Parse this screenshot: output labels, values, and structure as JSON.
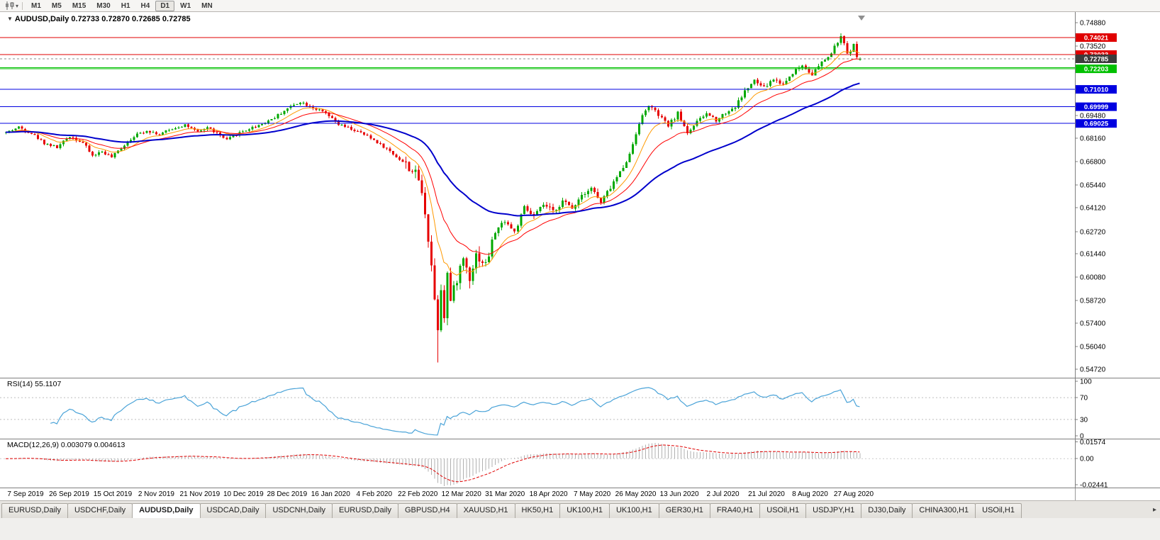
{
  "toolbar": {
    "timeframes": [
      "M1",
      "M5",
      "M15",
      "M30",
      "H1",
      "H4",
      "D1",
      "W1",
      "MN"
    ],
    "active_timeframe": "D1",
    "chart_type_icon": "candlestick-chart-icon"
  },
  "chart": {
    "title": "AUDUSD,Daily",
    "ohlc_text": "0.72733 0.72870 0.72685 0.72785"
  },
  "rsi": {
    "title": "RSI(14)",
    "value": "55.1107",
    "scale_labels": [
      "100",
      "70",
      "30",
      "0"
    ]
  },
  "macd": {
    "title": "MACD(12,26,9)",
    "value": "0.003079 0.004613",
    "scale_labels": [
      "0.01574",
      "0.00",
      "-0.02441"
    ]
  },
  "levels": [
    {
      "price": 0.74021,
      "color": "#e00000",
      "label": "0.74021"
    },
    {
      "price": 0.73033,
      "color": "#e00000",
      "label": "0.73033"
    },
    {
      "price": 0.7228,
      "color": "#00c000",
      "label": ""
    },
    {
      "price": 0.72203,
      "color": "#00c000",
      "label": "0.72203"
    },
    {
      "price": 0.7101,
      "color": "#0000e0",
      "label": "0.71010"
    },
    {
      "price": 0.69999,
      "color": "#0000e0",
      "label": "0.69999"
    },
    {
      "price": 0.69025,
      "color": "#0000e0",
      "label": "0.69025"
    }
  ],
  "current_price": {
    "price": 0.72785,
    "label": "0.72785",
    "box_color": "#3c3c3c"
  },
  "price_scale_labels": [
    "0.74880",
    "0.73520",
    "0.69480",
    "0.68160",
    "0.66800",
    "0.65440",
    "0.64120",
    "0.62720",
    "0.61440",
    "0.60080",
    "0.58720",
    "0.57400",
    "0.56040",
    "0.54720"
  ],
  "time_axis": {
    "labels": [
      "7 Sep 2019",
      "26 Sep 2019",
      "15 Oct 2019",
      "2 Nov 2019",
      "21 Nov 2019",
      "10 Dec 2019",
      "28 Dec 2019",
      "16 Jan 2020",
      "4 Feb 2020",
      "22 Feb 2020",
      "12 Mar 2020",
      "31 Mar 2020",
      "18 Apr 2020",
      "7 May 2020",
      "26 May 2020",
      "13 Jun 2020",
      "2 Jul 2020",
      "21 Jul 2020",
      "8 Aug 2020",
      "27 Aug 2020"
    ]
  },
  "tabs": {
    "items": [
      "EURUSD,Daily",
      "USDCHF,Daily",
      "AUDUSD,Daily",
      "USDCAD,Daily",
      "USDCNH,Daily",
      "EURUSD,Daily",
      "GBPUSD,H4",
      "XAUUSD,H1",
      "HK50,H1",
      "UK100,H1",
      "UK100,H1",
      "GER30,H1",
      "FRA40,H1",
      "USOil,H1",
      "USDJPY,H1",
      "DJ30,Daily",
      "CHINA300,H1",
      "USOil,H1"
    ],
    "active_index": 2,
    "scroll_right": "▸"
  },
  "chart_data": {
    "type": "candlestick",
    "symbol": "AUDUSD",
    "timeframe": "Daily",
    "count": 268,
    "seed": 42,
    "colors": {
      "up": "#00a800",
      "down": "#e60000"
    },
    "last_candle": {
      "open": 0.72733,
      "high": 0.7287,
      "low": 0.72685,
      "close": 0.72785
    },
    "waypoints": [
      [
        0,
        0.685
      ],
      [
        4,
        0.688
      ],
      [
        8,
        0.6845
      ],
      [
        12,
        0.679
      ],
      [
        16,
        0.6762
      ],
      [
        20,
        0.683
      ],
      [
        24,
        0.679
      ],
      [
        27,
        0.6715
      ],
      [
        30,
        0.674
      ],
      [
        33,
        0.6705
      ],
      [
        36,
        0.676
      ],
      [
        40,
        0.683
      ],
      [
        44,
        0.6862
      ],
      [
        48,
        0.6838
      ],
      [
        52,
        0.6872
      ],
      [
        56,
        0.6895
      ],
      [
        60,
        0.685
      ],
      [
        63,
        0.688
      ],
      [
        66,
        0.6845
      ],
      [
        69,
        0.6805
      ],
      [
        72,
        0.684
      ],
      [
        76,
        0.6872
      ],
      [
        80,
        0.69
      ],
      [
        84,
        0.6938
      ],
      [
        88,
        0.699
      ],
      [
        92,
        0.703
      ],
      [
        96,
        0.6995
      ],
      [
        100,
        0.696
      ],
      [
        104,
        0.6895
      ],
      [
        108,
        0.687
      ],
      [
        112,
        0.6838
      ],
      [
        116,
        0.6795
      ],
      [
        120,
        0.674
      ],
      [
        124,
        0.668
      ],
      [
        127,
        0.663
      ],
      [
        129,
        0.658
      ],
      [
        131,
        0.639
      ],
      [
        133,
        0.608
      ],
      [
        134,
        0.588
      ],
      [
        135,
        0.572
      ],
      [
        136,
        0.595
      ],
      [
        137,
        0.579
      ],
      [
        138,
        0.603
      ],
      [
        139,
        0.587
      ],
      [
        141,
        0.6
      ],
      [
        143,
        0.612
      ],
      [
        145,
        0.601
      ],
      [
        147,
        0.614
      ],
      [
        150,
        0.608
      ],
      [
        153,
        0.627
      ],
      [
        156,
        0.634
      ],
      [
        159,
        0.627
      ],
      [
        162,
        0.641
      ],
      [
        165,
        0.636
      ],
      [
        168,
        0.643
      ],
      [
        171,
        0.639
      ],
      [
        174,
        0.645
      ],
      [
        177,
        0.641
      ],
      [
        180,
        0.649
      ],
      [
        183,
        0.653
      ],
      [
        186,
        0.644
      ],
      [
        189,
        0.653
      ],
      [
        192,
        0.662
      ],
      [
        195,
        0.672
      ],
      [
        198,
        0.691
      ],
      [
        201,
        0.701
      ],
      [
        204,
        0.695
      ],
      [
        207,
        0.689
      ],
      [
        210,
        0.696
      ],
      [
        213,
        0.685
      ],
      [
        216,
        0.691
      ],
      [
        219,
        0.696
      ],
      [
        222,
        0.6925
      ],
      [
        225,
        0.6965
      ],
      [
        228,
        0.7
      ],
      [
        231,
        0.709
      ],
      [
        234,
        0.715
      ],
      [
        237,
        0.711
      ],
      [
        240,
        0.716
      ],
      [
        243,
        0.713
      ],
      [
        246,
        0.72
      ],
      [
        249,
        0.724
      ],
      [
        252,
        0.719
      ],
      [
        255,
        0.7255
      ],
      [
        258,
        0.731
      ],
      [
        260,
        0.738
      ],
      [
        261,
        0.7405
      ],
      [
        262,
        0.736
      ],
      [
        263,
        0.731
      ],
      [
        264,
        0.733
      ],
      [
        265,
        0.7355
      ],
      [
        266,
        0.73
      ],
      [
        267,
        0.7279
      ]
    ],
    "specials": {
      "135": {
        "low": 0.5512
      },
      "261": {
        "high": 0.7414
      }
    },
    "volatility": {
      "base": 0.0013,
      "crash": [
        125,
        152,
        0.0048
      ],
      "recovery": [
        153,
        190,
        0.0022
      ],
      "late": [
        191,
        267,
        0.0018
      ]
    },
    "moving_averages": [
      {
        "period": 10,
        "color": "#ff9900",
        "width": 1
      },
      {
        "period": 21,
        "color": "#ff0000",
        "width": 1
      },
      {
        "period": 55,
        "color": "#0000cc",
        "width": 2
      }
    ],
    "indicators": {
      "rsi": {
        "period": 14,
        "color": "#4aa3d8",
        "levels": [
          70,
          30
        ]
      },
      "macd": {
        "fast": 12,
        "slow": 26,
        "signal": 9,
        "hist_color": "#b0b0b0",
        "signal_color": "#e00000",
        "range": [
          -0.025,
          0.016
        ]
      }
    },
    "price_axis": {
      "min": 0.544,
      "max": 0.753
    }
  }
}
